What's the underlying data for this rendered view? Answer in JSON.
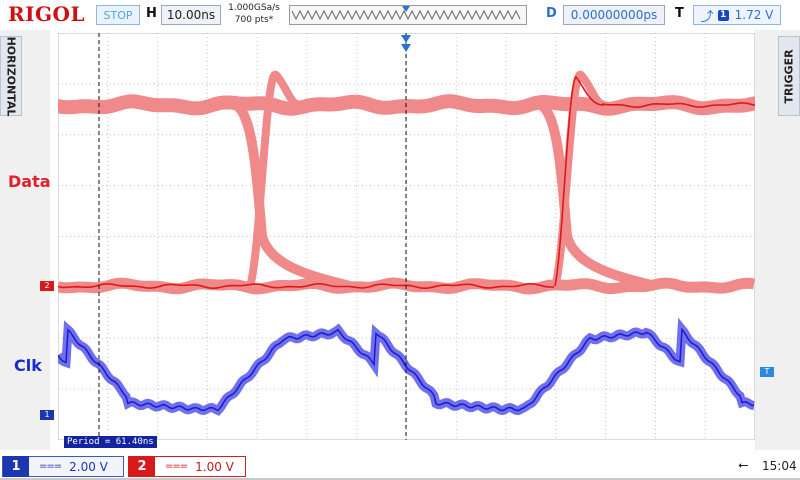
{
  "topbar": {
    "logo": "RIGOL",
    "run_state": "STOP",
    "horizontal_label": "H",
    "timebase": "10.00ns",
    "sample_rate": "1.000GSa/s",
    "memory_depth": "700 pts*",
    "delay_label": "D",
    "delay_value": "0.00000000ps",
    "trigger_label": "T",
    "trigger_source": "1",
    "trigger_level": "1.72 V"
  },
  "side_tabs": {
    "left": "HORIZONTAL",
    "right": "TRIGGER"
  },
  "channels": {
    "data_label": "Data",
    "clk_label": "Clk",
    "ch2_marker": "2",
    "ch1_marker": "1",
    "trigger_marker": "T"
  },
  "measurement": "Period = 61.40ns",
  "bottombar": {
    "ch1_number": "1",
    "ch1_coupling": "===",
    "ch1_scale": "2.00 V",
    "ch2_number": "2",
    "ch2_coupling": "===",
    "ch2_scale": "1.00 V",
    "usb_icon": "usb-icon",
    "clock": "15:04"
  },
  "colors": {
    "data_trace": "#e01818",
    "data_persistence": "#f08a8a",
    "clk_trace": "#1a1ad0",
    "clk_persistence": "#7070ec",
    "grid": "#c4c4c4"
  }
}
